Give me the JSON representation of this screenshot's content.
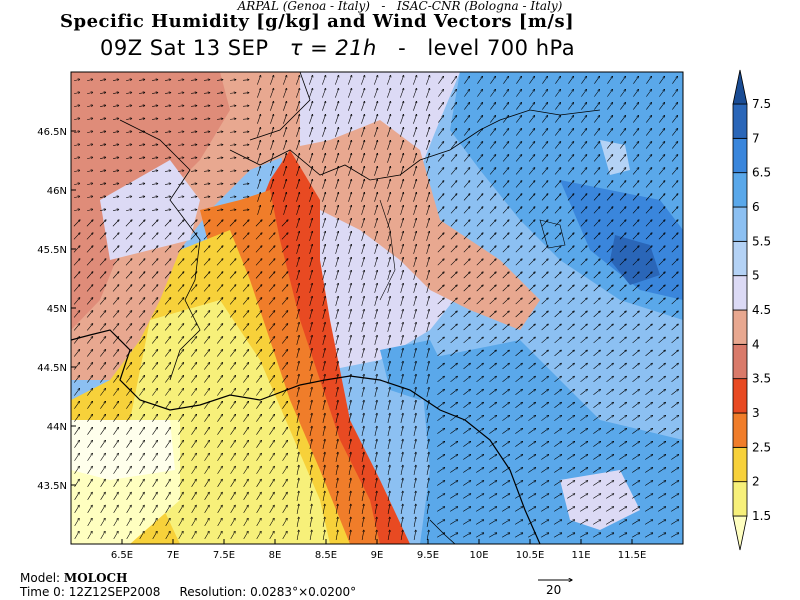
{
  "header": {
    "credits_left": "ARPAL (Genoa - Italy)",
    "credits_sep": "-",
    "credits_right": "ISAC-CNR (Bologna - Italy)",
    "title": "Specific Humidity [g/kg] and Wind Vectors [m/s]",
    "time_label": "09Z Sat 13 SEP",
    "tau_label": "τ = 21h",
    "dash": "-",
    "level_label": "level 700 hPa"
  },
  "map": {
    "lon_ticks": [
      "6.5E",
      "7E",
      "7.5E",
      "8E",
      "8.5E",
      "9E",
      "9.5E",
      "10E",
      "10.5E",
      "11E",
      "11.5E"
    ],
    "lat_ticks": [
      "43.5N",
      "44N",
      "44.5N",
      "45N",
      "45.5N",
      "46N",
      "46.5N"
    ],
    "lon_values": [
      6.5,
      7,
      7.5,
      8,
      8.5,
      9,
      9.5,
      10,
      10.5,
      11,
      11.5
    ],
    "lat_values": [
      43.5,
      44,
      44.5,
      45,
      45.5,
      46,
      46.5
    ],
    "lon_range": [
      6.0,
      12.0
    ],
    "lat_range": [
      43.0,
      47.0
    ]
  },
  "colorbar": {
    "labels": [
      "1.5",
      "2",
      "2.5",
      "3",
      "3.5",
      "4",
      "4.5",
      "5",
      "5.5",
      "6",
      "6.5",
      "7",
      "7.5"
    ],
    "colors": [
      "#ffffc0",
      "#f7f07a",
      "#f7d13a",
      "#f07d2a",
      "#e84a22",
      "#d97a6a",
      "#e8a890",
      "#dcdaf5",
      "#b4d2f5",
      "#8cc0f2",
      "#5aa8ea",
      "#3a86dc",
      "#2a66b8",
      "#1a4c94"
    ]
  },
  "footer": {
    "model_label": "Model:",
    "model_name": "MOLOCH",
    "time0_label": "Time 0:",
    "time0_value": "12Z12SEP2008",
    "resolution_label": "Resolution:",
    "resolution_value": "0.0283°×0.0200°",
    "ref_vector_value": "20"
  }
}
